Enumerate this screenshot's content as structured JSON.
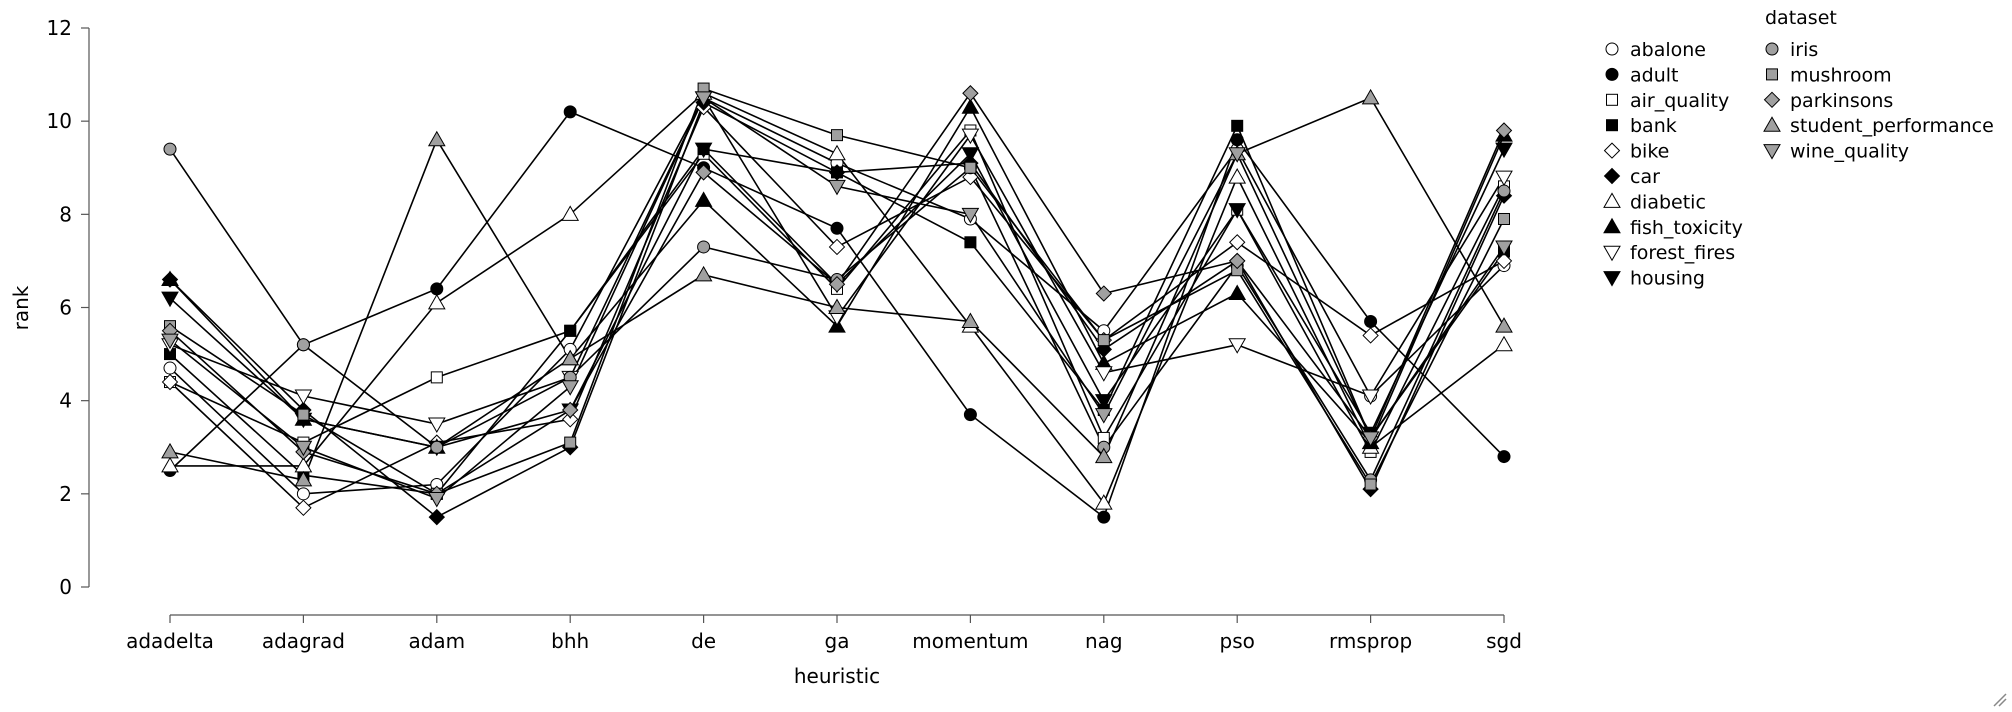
{
  "chart_data": {
    "type": "line",
    "title": "",
    "xlabel": "heuristic",
    "ylabel": "rank",
    "ylim": [
      0,
      12
    ],
    "yticks": [
      0,
      2,
      4,
      6,
      8,
      10,
      12
    ],
    "grid": false,
    "legend_position": "top-right",
    "legend_title": "dataset",
    "categories": [
      "adadelta",
      "adagrad",
      "adam",
      "bhh",
      "de",
      "ga",
      "momentum",
      "nag",
      "pso",
      "rmsprop",
      "sgd"
    ],
    "series": [
      {
        "name": "abalone",
        "marker": "circle",
        "fill": "#ffffff",
        "values": [
          4.7,
          2.0,
          2.2,
          5.1,
          10.5,
          9.1,
          7.9,
          5.5,
          9.4,
          4.1,
          6.9
        ]
      },
      {
        "name": "adult",
        "marker": "circle",
        "fill": "#000000",
        "values": [
          2.5,
          5.2,
          6.4,
          10.2,
          9.0,
          7.7,
          3.7,
          1.5,
          9.6,
          5.7,
          2.8
        ]
      },
      {
        "name": "air_quality",
        "marker": "square",
        "fill": "#ffffff",
        "values": [
          4.4,
          3.1,
          4.5,
          5.5,
          9.3,
          6.4,
          9.8,
          3.2,
          8.1,
          2.9,
          8.6
        ]
      },
      {
        "name": "bank",
        "marker": "square",
        "fill": "#000000",
        "values": [
          5.0,
          2.4,
          2.0,
          5.5,
          9.4,
          8.9,
          7.4,
          3.8,
          9.9,
          3.2,
          7.2
        ]
      },
      {
        "name": "bike",
        "marker": "diamond",
        "fill": "#ffffff",
        "values": [
          4.4,
          1.7,
          3.1,
          3.6,
          10.3,
          7.3,
          8.8,
          5.3,
          7.4,
          5.4,
          7.0
        ]
      },
      {
        "name": "car",
        "marker": "diamond",
        "fill": "#000000",
        "values": [
          6.6,
          3.8,
          1.5,
          3.0,
          10.4,
          8.9,
          9.1,
          5.1,
          7.0,
          2.1,
          8.4
        ]
      },
      {
        "name": "diabetic",
        "marker": "triangle-up",
        "fill": "#ffffff",
        "values": [
          2.6,
          2.6,
          6.1,
          8.0,
          10.6,
          9.3,
          5.6,
          1.8,
          8.8,
          3.0,
          5.2
        ]
      },
      {
        "name": "fish_toxicity",
        "marker": "triangle-up",
        "fill": "#000000",
        "values": [
          6.6,
          3.6,
          3.0,
          4.9,
          8.3,
          5.6,
          10.3,
          4.8,
          6.3,
          3.1,
          9.7
        ]
      },
      {
        "name": "forest_fires",
        "marker": "triangle-down",
        "fill": "#ffffff",
        "values": [
          5.2,
          4.1,
          3.5,
          4.5,
          10.5,
          5.8,
          9.7,
          4.6,
          5.2,
          4.1,
          8.8
        ]
      },
      {
        "name": "housing",
        "marker": "triangle-down",
        "fill": "#000000",
        "values": [
          6.2,
          3.6,
          3.0,
          3.8,
          9.4,
          6.5,
          9.3,
          4.0,
          8.1,
          3.3,
          9.4
        ]
      },
      {
        "name": "iris",
        "marker": "circle",
        "fill": "#a0a0a0",
        "values": [
          9.4,
          5.2,
          3.0,
          4.5,
          7.3,
          6.6,
          9.0,
          3.0,
          6.9,
          2.3,
          8.5
        ]
      },
      {
        "name": "mushroom",
        "marker": "square",
        "fill": "#a0a0a0",
        "values": [
          5.6,
          3.7,
          2.0,
          3.1,
          10.7,
          9.7,
          9.0,
          5.3,
          6.8,
          2.2,
          7.9
        ]
      },
      {
        "name": "parkinsons",
        "marker": "diamond",
        "fill": "#a0a0a0",
        "values": [
          5.5,
          2.9,
          2.0,
          3.8,
          8.9,
          6.5,
          10.6,
          6.3,
          7.0,
          3.2,
          9.8
        ]
      },
      {
        "name": "student_performance",
        "marker": "triangle-up",
        "fill": "#a0a0a0",
        "values": [
          2.9,
          2.3,
          9.6,
          4.9,
          6.7,
          6.0,
          5.7,
          2.8,
          9.3,
          10.5,
          5.6
        ]
      },
      {
        "name": "wine_quality",
        "marker": "triangle-down",
        "fill": "#a0a0a0",
        "values": [
          5.3,
          3.0,
          1.9,
          4.3,
          10.5,
          8.6,
          8.0,
          3.7,
          9.3,
          3.2,
          7.3
        ]
      }
    ]
  }
}
